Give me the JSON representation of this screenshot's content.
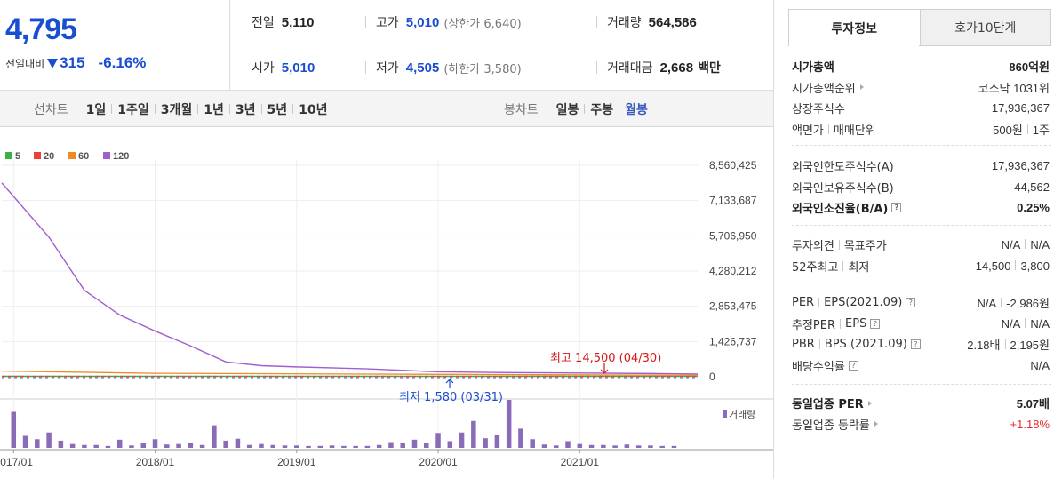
{
  "quote": {
    "price": "4,795",
    "change_label": "전일대비",
    "change_value": "315",
    "change_pct": "-6.16%"
  },
  "stats": {
    "prev_label": "전일",
    "prev_value": "5,110",
    "high_label": "고가",
    "high_value": "5,010",
    "upper_limit": "(상한가 6,640)",
    "volume_label": "거래량",
    "volume_value": "564,586",
    "open_label": "시가",
    "open_value": "5,010",
    "low_label": "저가",
    "low_value": "4,505",
    "lower_limit": "(하한가 3,580)",
    "amount_label": "거래대금",
    "amount_value": "2,668",
    "amount_unit": "백만"
  },
  "period_bar": {
    "line_title": "선차트",
    "line_periods": [
      "1일",
      "1주일",
      "3개월",
      "1년",
      "3년",
      "5년",
      "10년"
    ],
    "candle_title": "봉차트",
    "candle_periods": [
      "일봉",
      "주봉",
      "월봉"
    ],
    "candle_active": "월봉"
  },
  "chart_data": {
    "type": "line",
    "legend": [
      {
        "name": "5",
        "color": "#3cb043"
      },
      {
        "name": "20",
        "color": "#e8413a"
      },
      {
        "name": "60",
        "color": "#f08a24"
      },
      {
        "name": "120",
        "color": "#a05fd0"
      }
    ],
    "y_ticks": [
      "8,560,425",
      "7,133,687",
      "5,706,950",
      "4,280,212",
      "2,853,475",
      "1,426,737",
      "0"
    ],
    "ylim": [
      0,
      8560425
    ],
    "x_ticks": [
      "2017/01",
      "2018/01",
      "2019/01",
      "2020/01",
      "2021/01"
    ],
    "xlim": [
      "2016/12",
      "2021/11"
    ],
    "series_120": {
      "x": [
        "2016/12",
        "2017/04",
        "2017/07",
        "2017/10",
        "2018/01",
        "2018/04",
        "2018/07",
        "2018/10",
        "2019/01",
        "2019/07",
        "2020/01",
        "2020/07",
        "2021/01",
        "2021/07",
        "2021/11"
      ],
      "y": [
        7850000,
        5650000,
        3500000,
        2500000,
        1850000,
        1250000,
        600000,
        450000,
        400000,
        320000,
        200000,
        170000,
        150000,
        130000,
        110000
      ]
    },
    "series_60": {
      "x": [
        "2016/12",
        "2018/01",
        "2021/11"
      ],
      "y": [
        230000,
        140000,
        60000
      ]
    },
    "annotation_high": "최고 14,500 (04/30)",
    "annotation_low": "최저 1,580 (03/31)",
    "volume_label": "거래량",
    "volume": [
      {
        "x": "2017/01",
        "v": 0.75
      },
      {
        "x": "2017/02",
        "v": 0.25
      },
      {
        "x": "2017/03",
        "v": 0.18
      },
      {
        "x": "2017/04",
        "v": 0.32
      },
      {
        "x": "2017/05",
        "v": 0.15
      },
      {
        "x": "2017/06",
        "v": 0.08
      },
      {
        "x": "2017/07",
        "v": 0.06
      },
      {
        "x": "2017/08",
        "v": 0.06
      },
      {
        "x": "2017/09",
        "v": 0.04
      },
      {
        "x": "2017/10",
        "v": 0.17
      },
      {
        "x": "2017/11",
        "v": 0.05
      },
      {
        "x": "2017/12",
        "v": 0.1
      },
      {
        "x": "2018/01",
        "v": 0.18
      },
      {
        "x": "2018/02",
        "v": 0.07
      },
      {
        "x": "2018/03",
        "v": 0.08
      },
      {
        "x": "2018/04",
        "v": 0.1
      },
      {
        "x": "2018/05",
        "v": 0.06
      },
      {
        "x": "2018/06",
        "v": 0.47
      },
      {
        "x": "2018/07",
        "v": 0.15
      },
      {
        "x": "2018/08",
        "v": 0.19
      },
      {
        "x": "2018/09",
        "v": 0.06
      },
      {
        "x": "2018/10",
        "v": 0.08
      },
      {
        "x": "2018/11",
        "v": 0.06
      },
      {
        "x": "2018/12",
        "v": 0.05
      },
      {
        "x": "2019/01",
        "v": 0.05
      },
      {
        "x": "2019/02",
        "v": 0.04
      },
      {
        "x": "2019/03",
        "v": 0.04
      },
      {
        "x": "2019/04",
        "v": 0.05
      },
      {
        "x": "2019/05",
        "v": 0.04
      },
      {
        "x": "2019/06",
        "v": 0.04
      },
      {
        "x": "2019/07",
        "v": 0.04
      },
      {
        "x": "2019/08",
        "v": 0.06
      },
      {
        "x": "2019/09",
        "v": 0.12
      },
      {
        "x": "2019/10",
        "v": 0.1
      },
      {
        "x": "2019/11",
        "v": 0.17
      },
      {
        "x": "2019/12",
        "v": 0.1
      },
      {
        "x": "2020/01",
        "v": 0.31
      },
      {
        "x": "2020/02",
        "v": 0.14
      },
      {
        "x": "2020/03",
        "v": 0.32
      },
      {
        "x": "2020/04",
        "v": 0.56
      },
      {
        "x": "2020/05",
        "v": 0.2
      },
      {
        "x": "2020/06",
        "v": 0.27
      },
      {
        "x": "2020/07",
        "v": 1.0
      },
      {
        "x": "2020/08",
        "v": 0.4
      },
      {
        "x": "2020/09",
        "v": 0.18
      },
      {
        "x": "2020/10",
        "v": 0.07
      },
      {
        "x": "2020/11",
        "v": 0.05
      },
      {
        "x": "2020/12",
        "v": 0.14
      },
      {
        "x": "2021/01",
        "v": 0.08
      },
      {
        "x": "2021/02",
        "v": 0.06
      },
      {
        "x": "2021/03",
        "v": 0.06
      },
      {
        "x": "2021/04",
        "v": 0.05
      },
      {
        "x": "2021/05",
        "v": 0.07
      },
      {
        "x": "2021/06",
        "v": 0.05
      },
      {
        "x": "2021/07",
        "v": 0.05
      },
      {
        "x": "2021/08",
        "v": 0.04
      },
      {
        "x": "2021/09",
        "v": 0.04
      }
    ]
  },
  "right_panel": {
    "tab_invest": "투자정보",
    "tab_orderbook": "호가10단계",
    "market_cap_label": "시가총액",
    "market_cap_value": "860억원",
    "market_cap_rank_label": "시가총액순위",
    "market_cap_rank_value": "코스닥 1031위",
    "shares_label": "상장주식수",
    "shares_value": "17,936,367",
    "face_label_a": "액면가",
    "face_label_b": "매매단위",
    "face_value_a": "500원",
    "face_value_b": "1주",
    "foreign_limit_label": "외국인한도주식수(A)",
    "foreign_limit_value": "17,936,367",
    "foreign_held_label": "외국인보유주식수(B)",
    "foreign_held_value": "44,562",
    "foreign_ratio_label": "외국인소진율(B/A)",
    "foreign_ratio_value": "0.25%",
    "opinion_label_a": "투자의견",
    "opinion_label_b": "목표주가",
    "opinion_value_a": "N/A",
    "opinion_value_b": "N/A",
    "w52_label_a": "52주최고",
    "w52_label_b": "최저",
    "w52_value_a": "14,500",
    "w52_value_b": "3,800",
    "per_label_a": "PER",
    "per_label_b": "EPS(2021.09)",
    "per_value_a": "N/A",
    "per_value_b": "-2,986원",
    "est_per_label_a": "추정PER",
    "est_per_label_b": "EPS",
    "est_per_value_a": "N/A",
    "est_per_value_b": "N/A",
    "pbr_label_a": "PBR",
    "pbr_label_b": "BPS (2021.09)",
    "pbr_value_a": "2.18배",
    "pbr_value_b": "2,195원",
    "dividend_label": "배당수익률",
    "dividend_value": "N/A",
    "sector_per_label": "동일업종 PER",
    "sector_per_value": "5.07배",
    "sector_change_label": "동일업종 등락률",
    "sector_change_value": "+1.18%"
  }
}
